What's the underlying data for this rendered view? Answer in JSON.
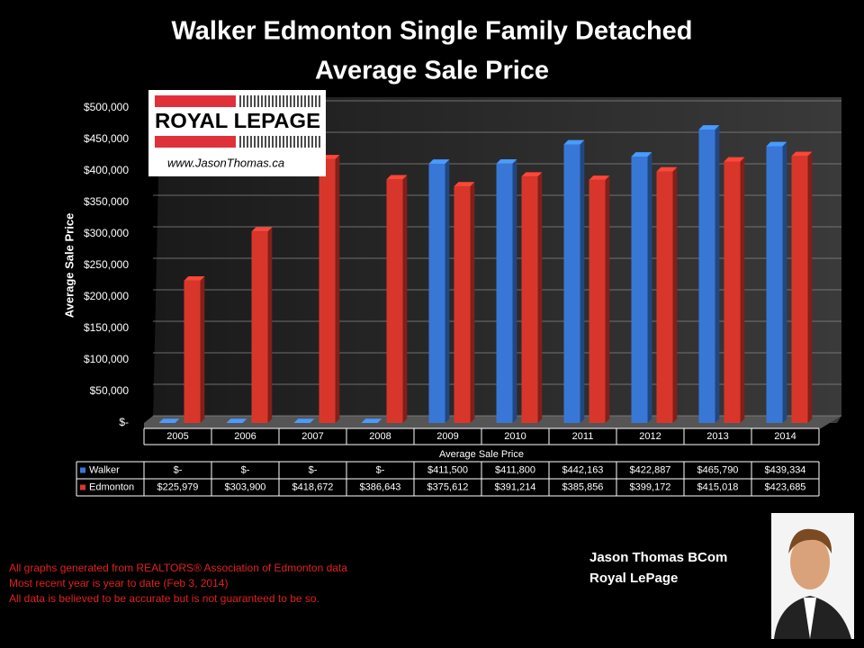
{
  "chart_data": {
    "type": "bar",
    "title": "Walker Edmonton Single Family Detached",
    "subtitle": "Average Sale Price",
    "y_label": "Average Sale Price",
    "x_label": "Average Sale Price",
    "categories": [
      "2005",
      "2006",
      "2007",
      "2008",
      "2009",
      "2010",
      "2011",
      "2012",
      "2013",
      "2014"
    ],
    "series": [
      {
        "name": "Walker",
        "color": "#3877d6",
        "values": [
          0,
          0,
          0,
          0,
          411500,
          411800,
          442163,
          422887,
          465790,
          439334
        ],
        "value_labels": [
          "$-",
          "$-",
          "$-",
          "$-",
          "$411,500",
          "$411,800",
          "$442,163",
          "$422,887",
          "$465,790",
          "$439,334"
        ]
      },
      {
        "name": "Edmonton",
        "color": "#d8362b",
        "values": [
          225979,
          303900,
          418672,
          386643,
          375612,
          391214,
          385856,
          399172,
          415018,
          423685
        ],
        "value_labels": [
          "$225,979",
          "$303,900",
          "$418,672",
          "$386,643",
          "$375,612",
          "$391,214",
          "$385,856",
          "$399,172",
          "$415,018",
          "$423,685"
        ]
      }
    ],
    "ylim": [
      0,
      500000
    ],
    "yticks": [
      {
        "value": 0,
        "label": "$-"
      },
      {
        "value": 50000,
        "label": "$50,000"
      },
      {
        "value": 100000,
        "label": "$100,000"
      },
      {
        "value": 150000,
        "label": "$150,000"
      },
      {
        "value": 200000,
        "label": "$200,000"
      },
      {
        "value": 250000,
        "label": "$250,000"
      },
      {
        "value": 300000,
        "label": "$300,000"
      },
      {
        "value": 350000,
        "label": "$350,000"
      },
      {
        "value": 400000,
        "label": "$400,000"
      },
      {
        "value": 450000,
        "label": "$450,000"
      },
      {
        "value": 500000,
        "label": "$500,000"
      }
    ],
    "grid": true
  },
  "logo": {
    "brand": "ROYAL LEPAGE",
    "url": "www.JasonThomas.ca"
  },
  "footnotes": [
    "All graphs generated from REALTORS® Association of Edmonton data",
    "Most recent year is year to date (Feb 3, 2014)",
    "All data is believed to be accurate but is not guaranteed to be so."
  ],
  "agent": {
    "name": "Jason Thomas BCom",
    "company": "Royal LePage"
  }
}
